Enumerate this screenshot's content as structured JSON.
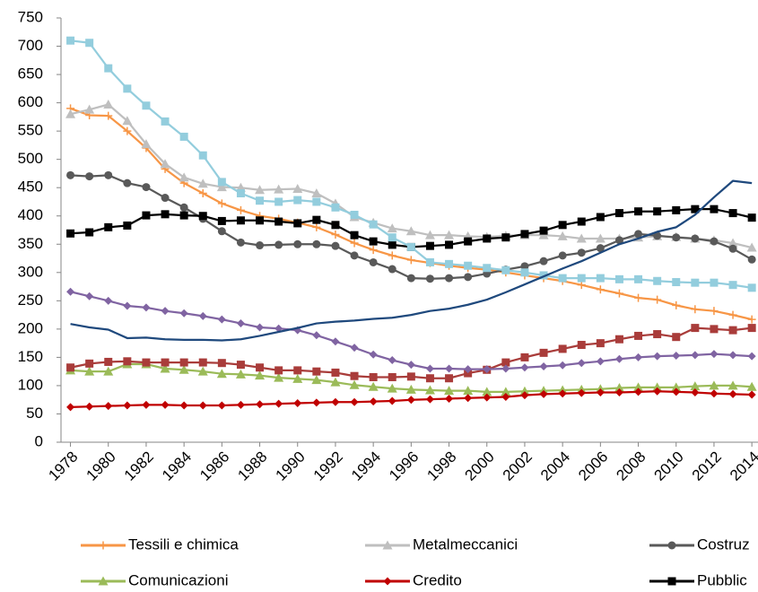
{
  "chart_data": {
    "type": "line",
    "x": [
      1978,
      1979,
      1980,
      1981,
      1982,
      1983,
      1984,
      1985,
      1986,
      1987,
      1988,
      1989,
      1990,
      1991,
      1992,
      1993,
      1994,
      1995,
      1996,
      1997,
      1998,
      1999,
      2000,
      2001,
      2002,
      2003,
      2004,
      2005,
      2006,
      2007,
      2008,
      2009,
      2010,
      2011,
      2012,
      2013,
      2014
    ],
    "xlim": [
      1977.5,
      2014.5
    ],
    "xticks": [
      1978,
      1980,
      1982,
      1984,
      1986,
      1988,
      1990,
      1992,
      1994,
      1996,
      1998,
      2000,
      2002,
      2004,
      2006,
      2008,
      2010,
      2012,
      2014
    ],
    "ylim": [
      0,
      750
    ],
    "yticks": [
      0,
      50,
      100,
      150,
      200,
      250,
      300,
      350,
      400,
      450,
      500,
      550,
      600,
      650,
      700,
      750
    ],
    "grid": false,
    "series": [
      {
        "name": "Tessili e chimica",
        "color": "#f79646",
        "marker": "plus",
        "values": [
          590,
          578,
          577,
          550,
          520,
          483,
          458,
          440,
          422,
          410,
          400,
          395,
          388,
          380,
          367,
          352,
          340,
          330,
          322,
          317,
          312,
          308,
          305,
          300,
          295,
          290,
          285,
          278,
          270,
          263,
          255,
          252,
          242,
          235,
          232,
          225,
          217
        ]
      },
      {
        "name": "Metalmeccanici",
        "color": "#bfbfbf",
        "marker": "triangle",
        "values": [
          580,
          588,
          597,
          568,
          527,
          492,
          468,
          457,
          451,
          450,
          446,
          447,
          448,
          440,
          422,
          398,
          388,
          378,
          373,
          366,
          366,
          364,
          363,
          365,
          366,
          366,
          364,
          360,
          360,
          360,
          362,
          364,
          363,
          360,
          357,
          352,
          344
        ]
      },
      {
        "name": "Costruz",
        "color": "#595959",
        "marker": "circle",
        "values": [
          472,
          470,
          472,
          458,
          451,
          432,
          415,
          395,
          373,
          353,
          348,
          349,
          350,
          350,
          347,
          330,
          318,
          306,
          290,
          289,
          290,
          292,
          298,
          305,
          311,
          320,
          330,
          335,
          343,
          357,
          368,
          365,
          362,
          360,
          355,
          342,
          323
        ]
      },
      {
        "name": "Comunicazioni",
        "color": "#9bbb59",
        "marker": "triangle",
        "values": [
          127,
          125,
          125,
          138,
          138,
          130,
          128,
          125,
          121,
          120,
          118,
          114,
          112,
          110,
          106,
          101,
          98,
          95,
          93,
          92,
          91,
          91,
          89,
          89,
          90,
          91,
          92,
          93,
          94,
          96,
          97,
          97,
          97,
          99,
          100,
          100,
          98
        ]
      },
      {
        "name": "Credito",
        "color": "#c00000",
        "marker": "diamond",
        "values": [
          62,
          63,
          64,
          65,
          66,
          66,
          65,
          65,
          65,
          66,
          67,
          68,
          69,
          70,
          71,
          71,
          72,
          73,
          75,
          76,
          77,
          78,
          79,
          80,
          83,
          85,
          86,
          87,
          88,
          88,
          89,
          90,
          89,
          88,
          86,
          85,
          84
        ]
      },
      {
        "name": "Pubblic",
        "color": "#000000",
        "marker": "square",
        "values": [
          369,
          371,
          380,
          383,
          401,
          403,
          401,
          400,
          391,
          392,
          392,
          390,
          387,
          393,
          384,
          366,
          355,
          349,
          345,
          347,
          349,
          355,
          360,
          362,
          368,
          374,
          384,
          390,
          398,
          405,
          408,
          408,
          410,
          412,
          412,
          405,
          397
        ]
      },
      {
        "color": "#93cddd",
        "marker": "square",
        "values": [
          710,
          706,
          661,
          625,
          595,
          567,
          540,
          507,
          460,
          440,
          427,
          425,
          428,
          425,
          415,
          402,
          385,
          362,
          345,
          318,
          315,
          312,
          308,
          304,
          300,
          295,
          290,
          290,
          290,
          288,
          288,
          285,
          283,
          282,
          282,
          278,
          273
        ]
      },
      {
        "color": "#a93c3a",
        "marker": "square",
        "values": [
          132,
          139,
          142,
          143,
          141,
          141,
          141,
          141,
          140,
          137,
          132,
          127,
          127,
          125,
          123,
          117,
          115,
          115,
          116,
          113,
          113,
          122,
          128,
          141,
          150,
          158,
          165,
          172,
          175,
          182,
          188,
          191,
          186,
          202,
          200,
          198,
          202
        ]
      },
      {
        "color": "#8064a2",
        "marker": "diamond",
        "values": [
          266,
          258,
          250,
          241,
          238,
          232,
          228,
          223,
          217,
          210,
          203,
          201,
          198,
          189,
          178,
          167,
          155,
          145,
          137,
          130,
          130,
          129,
          129,
          130,
          132,
          134,
          136,
          140,
          143,
          147,
          150,
          152,
          153,
          154,
          156,
          154,
          152
        ]
      },
      {
        "color": "#1f497d",
        "marker": "none",
        "values": [
          209,
          203,
          199,
          184,
          185,
          182,
          181,
          181,
          180,
          182,
          188,
          195,
          202,
          210,
          213,
          215,
          218,
          220,
          225,
          232,
          236,
          243,
          252,
          265,
          279,
          293,
          307,
          320,
          335,
          350,
          360,
          372,
          380,
          402,
          433,
          462,
          458
        ]
      }
    ]
  }
}
